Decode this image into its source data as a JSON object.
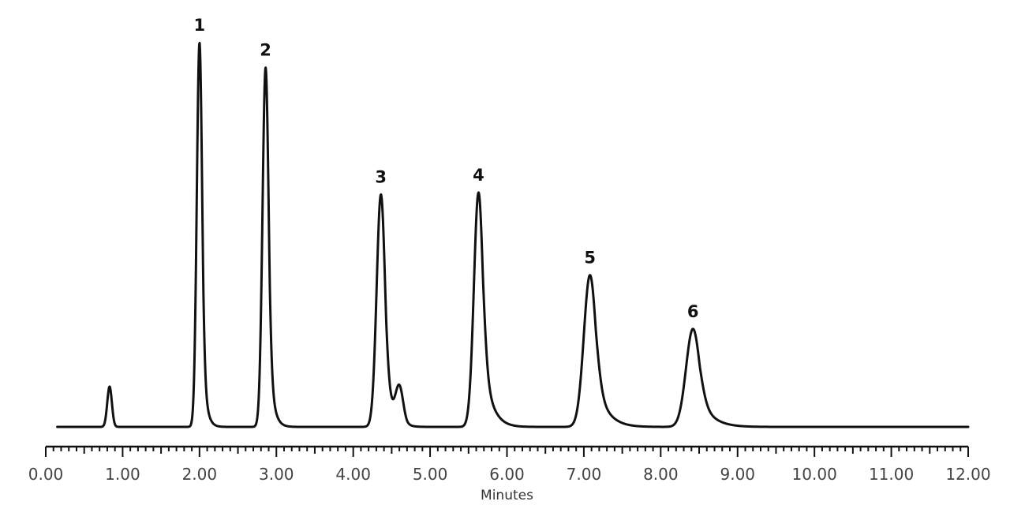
{
  "chart_data": {
    "type": "line",
    "xlabel": "Minutes",
    "ylabel": "",
    "xlim": [
      0.0,
      12.0
    ],
    "ylim": [
      0,
      100
    ],
    "x_ticks": [
      "0.00",
      "1.00",
      "2.00",
      "3.00",
      "4.00",
      "5.00",
      "6.00",
      "7.00",
      "8.00",
      "9.00",
      "10.00",
      "11.00",
      "12.00"
    ],
    "minor_tick_step": 0.1,
    "grid": false,
    "baseline_range": [
      0.15,
      12.0
    ],
    "peaks": [
      {
        "label": "",
        "rt": 0.83,
        "height": 10.5,
        "width": 0.03,
        "tail": 0.02
      },
      {
        "label": "1",
        "rt": 2.0,
        "height": 100,
        "width": 0.035,
        "tail": 0.05
      },
      {
        "label": "2",
        "rt": 2.86,
        "height": 93.5,
        "width": 0.04,
        "tail": 0.06
      },
      {
        "label": "3",
        "rt": 4.36,
        "height": 60.5,
        "width": 0.055,
        "tail": 0.09
      },
      {
        "label": "",
        "rt": 4.6,
        "height": 9.5,
        "width": 0.05,
        "tail": 0.05
      },
      {
        "label": "4",
        "rt": 5.63,
        "height": 61,
        "width": 0.06,
        "tail": 0.13
      },
      {
        "label": "5",
        "rt": 7.08,
        "height": 39.5,
        "width": 0.08,
        "tail": 0.17
      },
      {
        "label": "6",
        "rt": 8.42,
        "height": 25.5,
        "width": 0.09,
        "tail": 0.19
      }
    ]
  }
}
